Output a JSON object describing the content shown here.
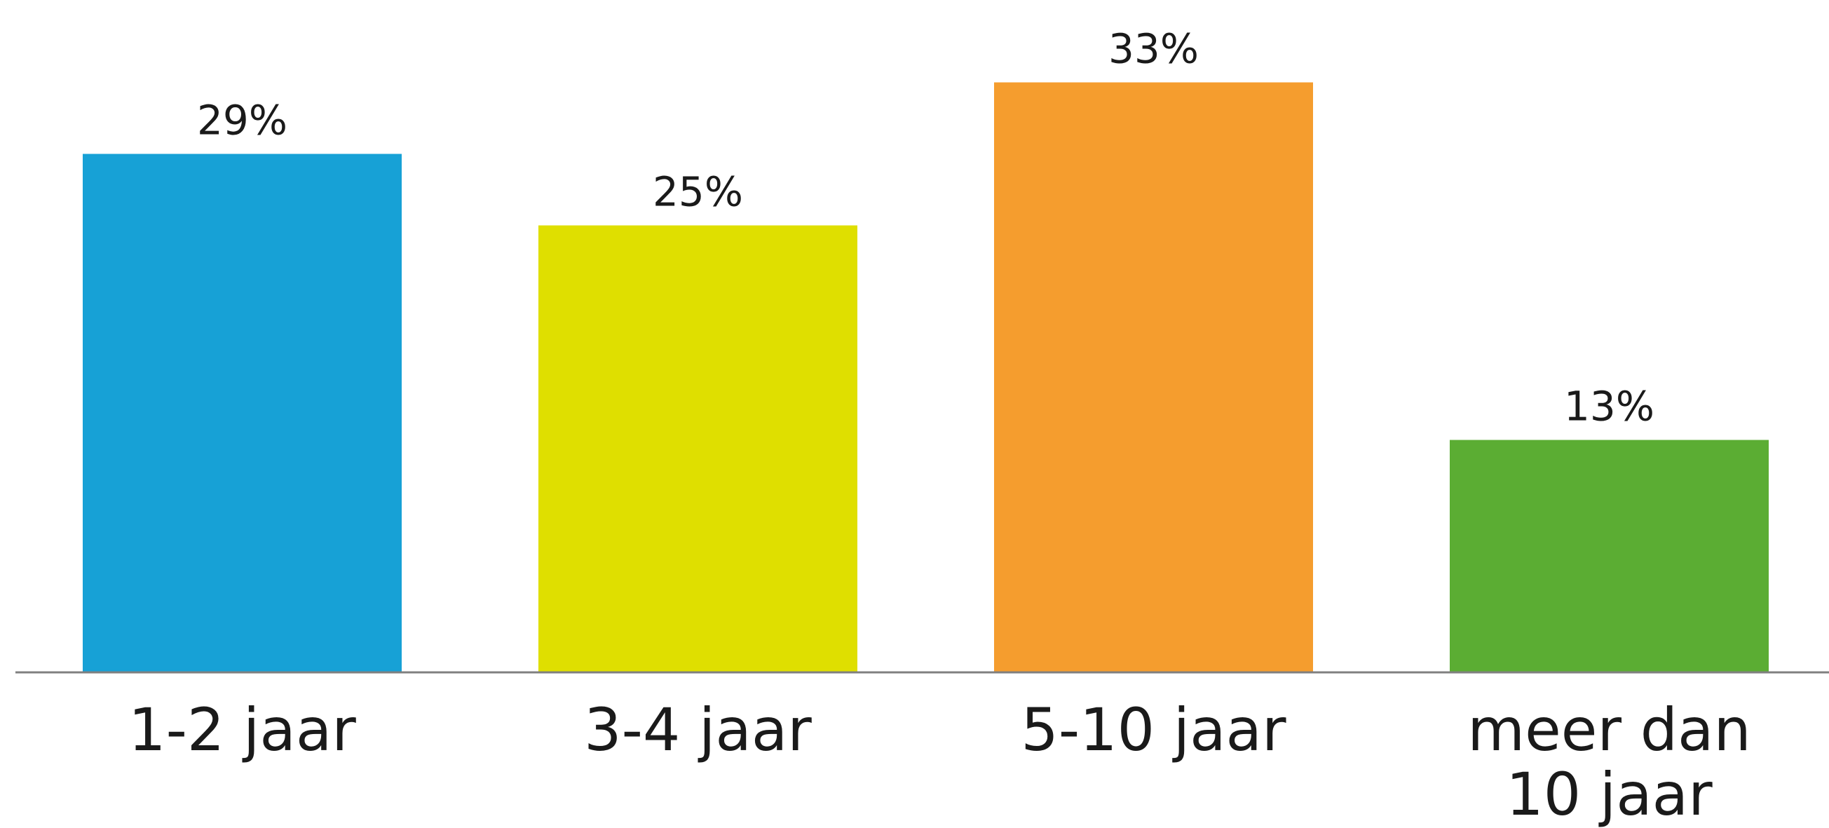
{
  "chart_data": {
    "type": "bar",
    "categories": [
      [
        "1-2 jaar"
      ],
      [
        "3-4 jaar"
      ],
      [
        "5-10 jaar"
      ],
      [
        "meer dan",
        "10 jaar"
      ]
    ],
    "values": [
      29,
      25,
      33,
      13
    ],
    "value_labels": [
      "29%",
      "25%",
      "33%",
      "13%"
    ],
    "colors": [
      "#17a1d6",
      "#dfdf00",
      "#f59d2e",
      "#5bad33"
    ],
    "axis_color": "#808080",
    "ylim": [
      0,
      100
    ],
    "grid": false,
    "legend": "none"
  }
}
